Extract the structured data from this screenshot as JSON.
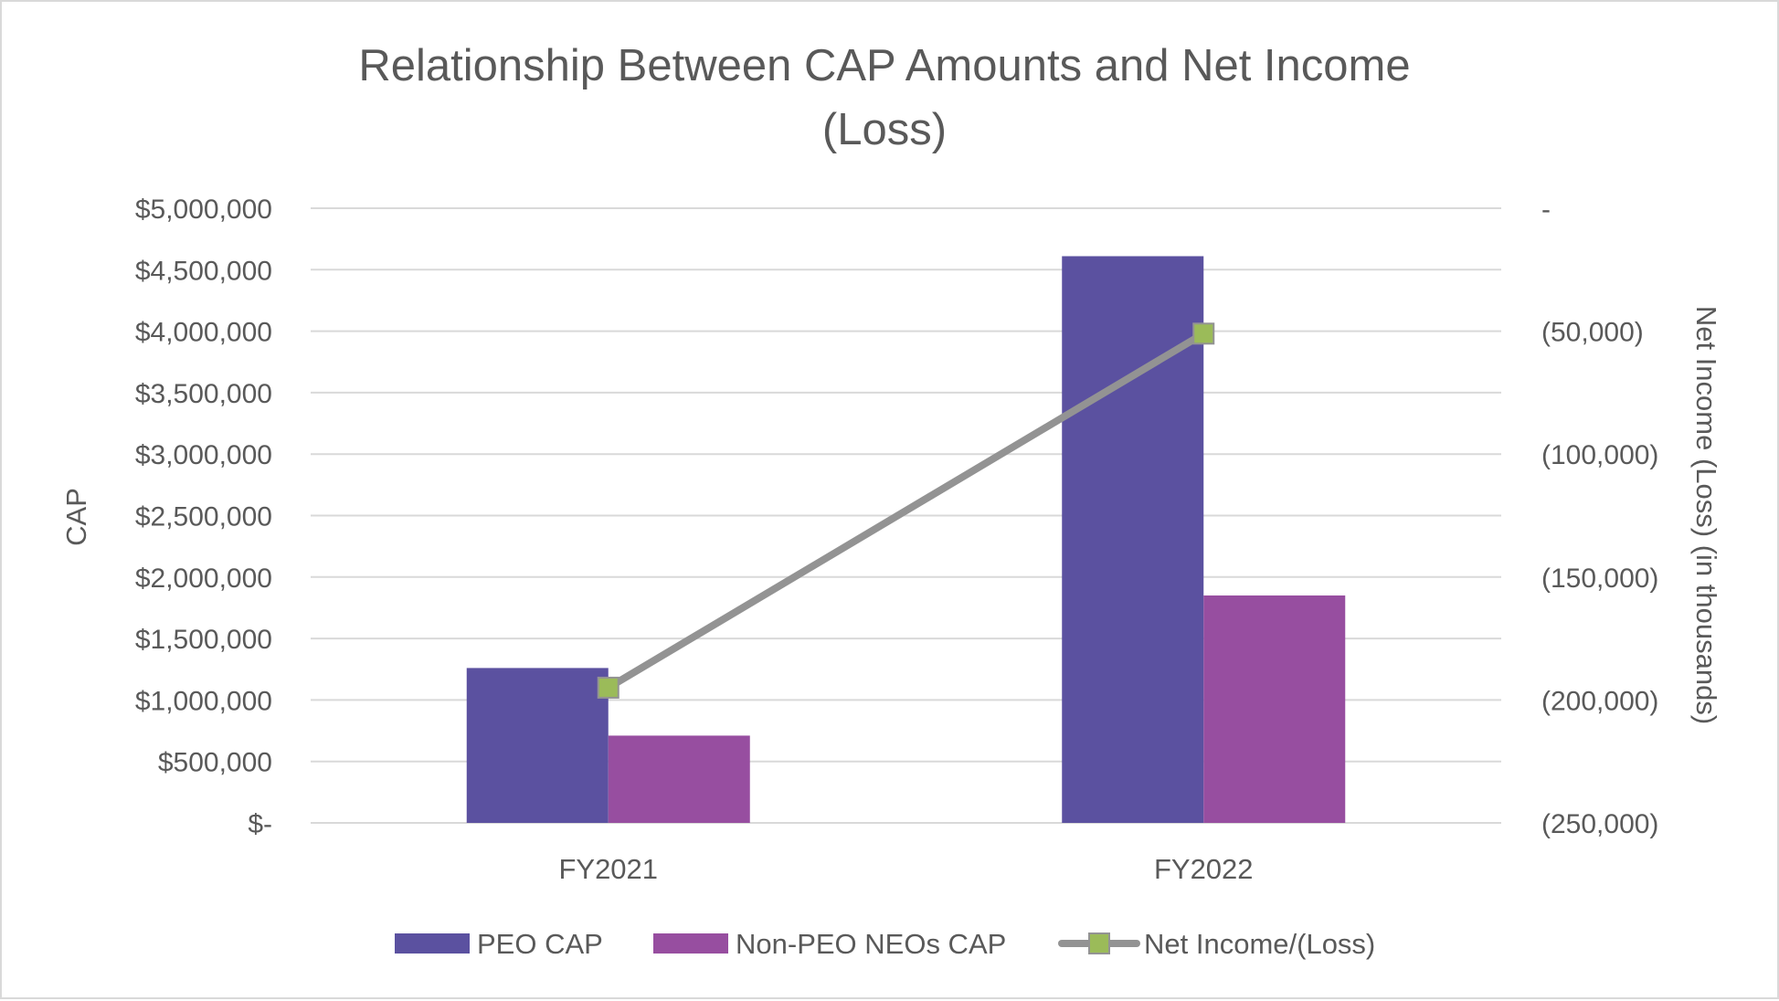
{
  "chart_data": {
    "type": "bar",
    "title_lines": [
      "Relationship Between CAP Amounts and Net Income",
      "(Loss)"
    ],
    "ylabel": "CAP",
    "y2label": "Net Income (Loss) (in thousands)",
    "categories": [
      "FY2021",
      "FY2022"
    ],
    "ylim": [
      0,
      5000000
    ],
    "y_ticks": [
      0,
      500000,
      1000000,
      1500000,
      2000000,
      2500000,
      3000000,
      3500000,
      4000000,
      4500000,
      5000000
    ],
    "y_tick_labels": [
      "$-",
      "$500,000",
      "$1,000,000",
      "$1,500,000",
      "$2,000,000",
      "$2,500,000",
      "$3,000,000",
      "$3,500,000",
      "$4,000,000",
      "$4,500,000",
      "$5,000,000"
    ],
    "y2lim": [
      -250000,
      0
    ],
    "y2_ticks": [
      -250000,
      -200000,
      -150000,
      -100000,
      -50000,
      0
    ],
    "y2_tick_labels": [
      "(250,000)",
      "(200,000)",
      "(150,000)",
      "(100,000)",
      "(50,000)",
      "-"
    ],
    "series": [
      {
        "name": "PEO CAP",
        "type": "bar",
        "axis": "left",
        "color": "#5b51a0",
        "values": [
          1260000,
          4610000
        ]
      },
      {
        "name": "Non-PEO NEOs CAP",
        "type": "bar",
        "axis": "left",
        "color": "#974ea0",
        "values": [
          710000,
          1850000
        ]
      },
      {
        "name": "Net Income/(Loss)",
        "type": "line",
        "axis": "right",
        "color": "#939393",
        "marker_color": "#9bbb59",
        "values": [
          -195000,
          -51000
        ]
      }
    ],
    "legend": "bottom",
    "grid": true
  }
}
